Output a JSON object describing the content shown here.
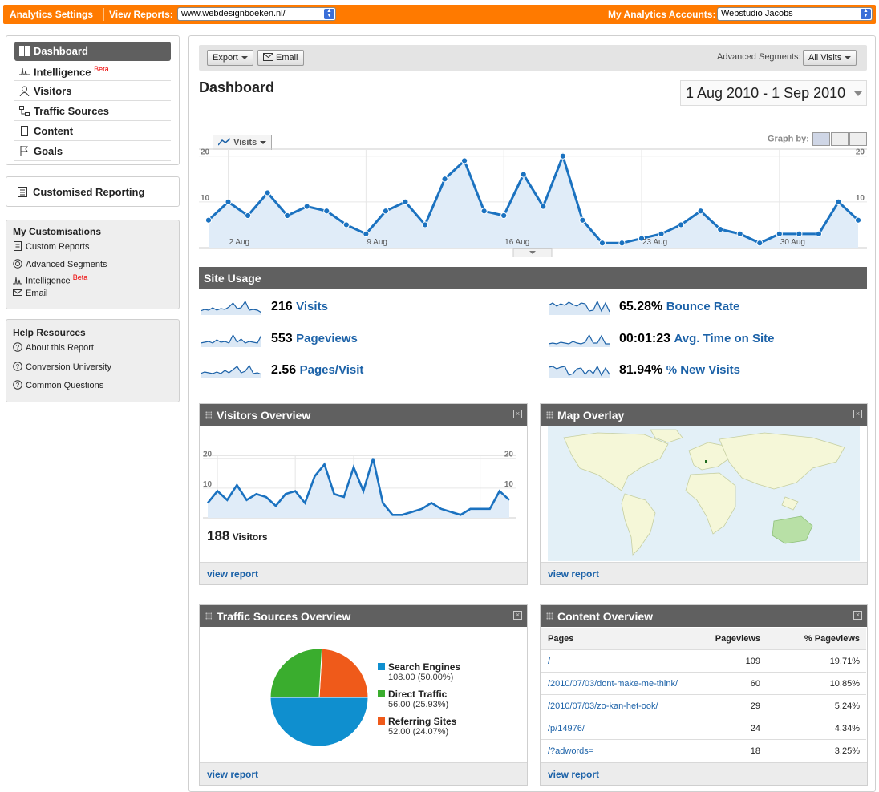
{
  "topbar": {
    "settings_label": "Analytics Settings",
    "view_reports_label": "View Reports:",
    "site_select": "www.webdesignboeken.nl/",
    "accounts_label": "My Analytics Accounts:",
    "account_select": "Webstudio Jacobs"
  },
  "nav": {
    "items": [
      {
        "label": "Dashboard",
        "icon": "grid-icon",
        "active": true
      },
      {
        "label": "Intelligence",
        "icon": "pulse-icon",
        "beta": "Beta"
      },
      {
        "label": "Visitors",
        "icon": "person-icon"
      },
      {
        "label": "Traffic Sources",
        "icon": "flow-icon"
      },
      {
        "label": "Content",
        "icon": "page-icon"
      },
      {
        "label": "Goals",
        "icon": "flag-icon"
      }
    ]
  },
  "custom_reporting": {
    "label": "Customised Reporting"
  },
  "my_customisations": {
    "title": "My Customisations",
    "links": [
      {
        "label": "Custom Reports",
        "icon": "report-icon"
      },
      {
        "label": "Advanced Segments",
        "icon": "target-icon"
      },
      {
        "label": "Intelligence",
        "icon": "pulse-icon",
        "beta": "Beta"
      },
      {
        "label": "Email",
        "icon": "mail-icon"
      }
    ]
  },
  "help_resources": {
    "title": "Help Resources",
    "links": [
      {
        "label": "About this Report",
        "icon": "question-icon"
      },
      {
        "label": "Conversion University",
        "icon": "question-icon"
      },
      {
        "label": "Common Questions",
        "icon": "question-icon"
      }
    ]
  },
  "toolbar": {
    "export_label": "Export",
    "email_label": "Email",
    "segments_label": "Advanced Segments:",
    "segments_value": "All Visits"
  },
  "page_title": "Dashboard",
  "date_range": "1 Aug 2010 - 1 Sep 2010",
  "graph": {
    "metric_tab": "Visits",
    "graph_by_label": "Graph by:"
  },
  "site_usage": {
    "title": "Site Usage",
    "metrics": [
      {
        "value": "216",
        "label": "Visits"
      },
      {
        "value": "553",
        "label": "Pageviews"
      },
      {
        "value": "2.56",
        "label": "Pages/Visit"
      },
      {
        "value": "65.28%",
        "label": "Bounce Rate"
      },
      {
        "value": "00:01:23",
        "label": "Avg. Time on Site"
      },
      {
        "value": "81.94%",
        "label": "% New Visits"
      }
    ]
  },
  "visitors_overview": {
    "title": "Visitors Overview",
    "count": "188",
    "count_label": "Visitors",
    "view_report": "view report"
  },
  "map_overlay": {
    "title": "Map Overlay",
    "view_report": "view report"
  },
  "traffic_sources": {
    "title": "Traffic Sources Overview",
    "view_report": "view report",
    "legend": [
      {
        "name": "Search Engines",
        "detail": "108.00 (50.00%)",
        "color": "#0f8fcf"
      },
      {
        "name": "Direct Traffic",
        "detail": "56.00 (25.93%)",
        "color": "#3aad2e"
      },
      {
        "name": "Referring Sites",
        "detail": "52.00 (24.07%)",
        "color": "#ef5a1a"
      }
    ]
  },
  "content_overview": {
    "title": "Content Overview",
    "view_report": "view report",
    "columns": [
      "Pages",
      "Pageviews",
      "% Pageviews"
    ],
    "rows": [
      [
        "/",
        "109",
        "19.71%"
      ],
      [
        "/2010/07/03/dont-make-me-think/",
        "60",
        "10.85%"
      ],
      [
        "/2010/07/03/zo-kan-het-ook/",
        "29",
        "5.24%"
      ],
      [
        "/p/14976/",
        "24",
        "4.34%"
      ],
      [
        "/?adwords=",
        "18",
        "3.25%"
      ]
    ]
  },
  "chart_data": [
    {
      "type": "area",
      "series": [
        {
          "name": "Visits",
          "values": [
            6,
            10,
            7,
            12,
            7,
            9,
            8,
            5,
            3,
            8,
            10,
            5,
            15,
            19,
            8,
            7,
            16,
            9,
            20,
            6,
            1,
            1,
            2,
            3,
            5,
            8,
            4,
            3,
            1,
            3,
            3,
            3,
            10,
            6
          ]
        }
      ],
      "x_tick_labels": [
        "2 Aug",
        "9 Aug",
        "16 Aug",
        "23 Aug",
        "30 Aug"
      ],
      "y_ticks": [
        10,
        20
      ],
      "ylim": [
        0,
        21
      ]
    },
    {
      "type": "area",
      "series": [
        {
          "values": [
            5,
            9,
            6,
            11,
            6,
            8,
            7,
            4,
            8,
            9,
            5,
            14,
            18,
            8,
            7,
            17,
            9,
            20,
            5,
            1,
            1,
            2,
            3,
            5,
            3,
            2,
            1,
            3,
            3,
            3,
            9,
            6
          ]
        }
      ],
      "y_ticks": [
        10,
        20
      ],
      "ylim": [
        0,
        21
      ]
    },
    {
      "type": "pie",
      "categories": [
        "Search Engines",
        "Direct Traffic",
        "Referring Sites"
      ],
      "values": [
        108.0,
        56.0,
        52.0
      ],
      "percentages": [
        50.0,
        25.93,
        24.07
      ]
    }
  ]
}
